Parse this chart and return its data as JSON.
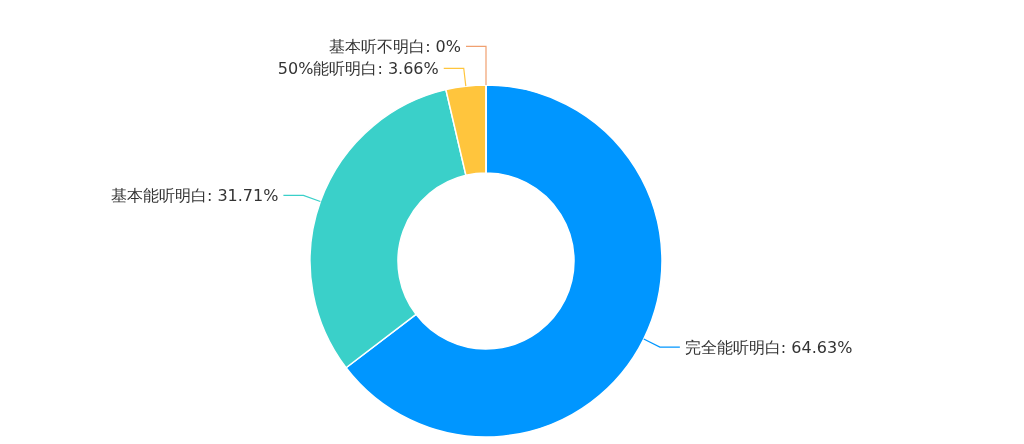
{
  "chart_data": {
    "type": "donut",
    "categories": [
      "完全能听明白",
      "基本能听明白",
      "50%能听明白",
      "基本听不明白"
    ],
    "values": [
      64.63,
      31.71,
      3.66,
      0
    ],
    "value_labels": [
      ": 64.63%",
      ": 31.71%",
      ": 3.66%",
      ": 0%"
    ],
    "colors": [
      "#0096ff",
      "#3ad0c9",
      "#ffc53d",
      "#f0a070"
    ]
  }
}
